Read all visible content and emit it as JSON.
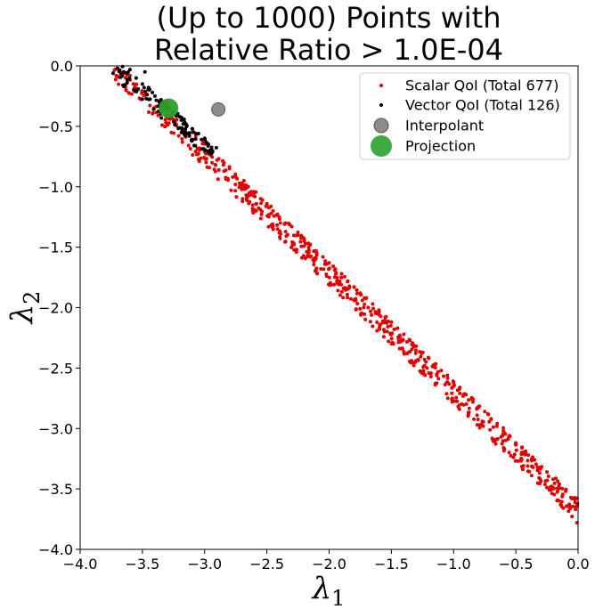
{
  "chart_data": {
    "type": "scatter",
    "title": [
      "(Up to 1000) Points with",
      "Relative Ratio > 1.0E-04"
    ],
    "xlabel": "λ",
    "xlabel_sub": "1",
    "ylabel": "λ",
    "ylabel_sub": "2",
    "xlim": [
      -4.0,
      0.0
    ],
    "ylim": [
      -4.0,
      0.0
    ],
    "xticks": [
      -4.0,
      -3.5,
      -3.0,
      -2.5,
      -2.0,
      -1.5,
      -1.0,
      -0.5,
      0.0
    ],
    "yticks": [
      -4.0,
      -3.5,
      -3.0,
      -2.5,
      -2.0,
      -1.5,
      -1.0,
      -0.5,
      0.0
    ],
    "xtick_labels": [
      "−4.0",
      "−3.5",
      "−3.0",
      "−2.5",
      "−2.0",
      "−1.5",
      "−1.0",
      "−0.5",
      "0.0"
    ],
    "ytick_labels": [
      "−4.0",
      "−3.5",
      "−3.0",
      "−2.5",
      "−2.0",
      "−1.5",
      "−1.0",
      "−0.5",
      "0.0"
    ],
    "grid": false,
    "legend_position": "top-right",
    "series": [
      {
        "name": "Scalar QoI (Total 677)",
        "color": "#e00000",
        "marker": "dot",
        "band": {
          "x_from": -3.72,
          "x_to": 0.0,
          "y_at_x_from": -0.03,
          "y_at_x_to": -3.68,
          "half_width": 0.07
        },
        "values": [
          [
            -3.6,
            -0.08
          ],
          [
            -3.45,
            -0.2
          ],
          [
            -3.3,
            -0.3
          ],
          [
            -3.1,
            -0.55
          ],
          [
            -3.0,
            -0.62
          ],
          [
            -2.95,
            -0.7
          ],
          [
            -2.9,
            -0.78
          ],
          [
            -2.85,
            -0.82
          ],
          [
            -2.8,
            -0.85
          ],
          [
            -2.75,
            -0.92
          ],
          [
            -2.7,
            -0.97
          ],
          [
            -2.65,
            -1.0
          ],
          [
            -2.6,
            -1.05
          ],
          [
            -2.55,
            -1.1
          ],
          [
            -2.5,
            -1.15
          ],
          [
            -2.45,
            -1.2
          ],
          [
            -2.4,
            -1.25
          ],
          [
            -2.35,
            -1.3
          ],
          [
            -2.3,
            -1.33
          ],
          [
            -2.25,
            -1.4
          ],
          [
            -2.2,
            -1.45
          ],
          [
            -2.15,
            -1.48
          ],
          [
            -2.1,
            -1.55
          ],
          [
            -2.05,
            -1.58
          ],
          [
            -2.0,
            -1.63
          ],
          [
            -1.95,
            -1.68
          ],
          [
            -1.9,
            -1.72
          ],
          [
            -1.85,
            -1.78
          ],
          [
            -1.8,
            -1.83
          ],
          [
            -1.75,
            -1.88
          ],
          [
            -1.7,
            -1.92
          ],
          [
            -1.65,
            -1.97
          ],
          [
            -1.6,
            -2.02
          ],
          [
            -1.55,
            -2.08
          ],
          [
            -1.5,
            -2.12
          ],
          [
            -1.45,
            -2.17
          ],
          [
            -1.4,
            -2.22
          ],
          [
            -1.35,
            -2.27
          ],
          [
            -1.3,
            -2.32
          ],
          [
            -1.25,
            -2.37
          ],
          [
            -1.2,
            -2.42
          ],
          [
            -1.15,
            -2.47
          ],
          [
            -1.1,
            -2.52
          ],
          [
            -1.05,
            -2.56
          ],
          [
            -1.0,
            -2.62
          ],
          [
            -0.95,
            -2.66
          ],
          [
            -0.9,
            -2.72
          ],
          [
            -0.85,
            -2.76
          ],
          [
            -0.8,
            -2.82
          ],
          [
            -0.75,
            -2.86
          ],
          [
            -0.7,
            -2.92
          ],
          [
            -0.65,
            -2.96
          ],
          [
            -0.6,
            -3.02
          ],
          [
            -0.55,
            -3.06
          ],
          [
            -0.5,
            -3.12
          ],
          [
            -0.45,
            -3.16
          ],
          [
            -0.4,
            -3.22
          ],
          [
            -0.35,
            -3.26
          ],
          [
            -0.3,
            -3.32
          ],
          [
            -0.25,
            -3.36
          ],
          [
            -0.2,
            -3.42
          ],
          [
            -0.15,
            -3.46
          ],
          [
            -0.1,
            -3.52
          ],
          [
            -0.05,
            -3.58
          ],
          [
            -0.02,
            -3.65
          ],
          [
            -0.01,
            -3.78
          ]
        ]
      },
      {
        "name": "Vector QoI (Total 126)",
        "color": "#000000",
        "marker": "dot",
        "band": {
          "x_from": -3.72,
          "x_to": -2.93,
          "y_at_x_from": -0.03,
          "y_at_x_to": -0.72,
          "half_width": 0.06
        },
        "values": [
          [
            -3.7,
            -0.02
          ],
          [
            -3.65,
            -0.05
          ],
          [
            -3.6,
            -0.03
          ],
          [
            -3.55,
            -0.1
          ],
          [
            -3.5,
            -0.15
          ],
          [
            -3.48,
            -0.05
          ],
          [
            -3.45,
            -0.18
          ],
          [
            -3.42,
            -0.22
          ],
          [
            -3.4,
            -0.25
          ],
          [
            -3.35,
            -0.28
          ],
          [
            -3.3,
            -0.32
          ],
          [
            -3.25,
            -0.38
          ],
          [
            -3.2,
            -0.42
          ],
          [
            -3.15,
            -0.48
          ],
          [
            -3.1,
            -0.52
          ],
          [
            -3.05,
            -0.56
          ],
          [
            -3.0,
            -0.6
          ],
          [
            -2.97,
            -0.65
          ]
        ]
      },
      {
        "name": "Interpolant",
        "color": "#808080",
        "marker": "circle",
        "values": [
          [
            -2.89,
            -0.36
          ]
        ]
      },
      {
        "name": "Projection",
        "color": "#2ca02c",
        "marker": "circle",
        "values": [
          [
            -3.29,
            -0.35
          ]
        ]
      }
    ]
  }
}
